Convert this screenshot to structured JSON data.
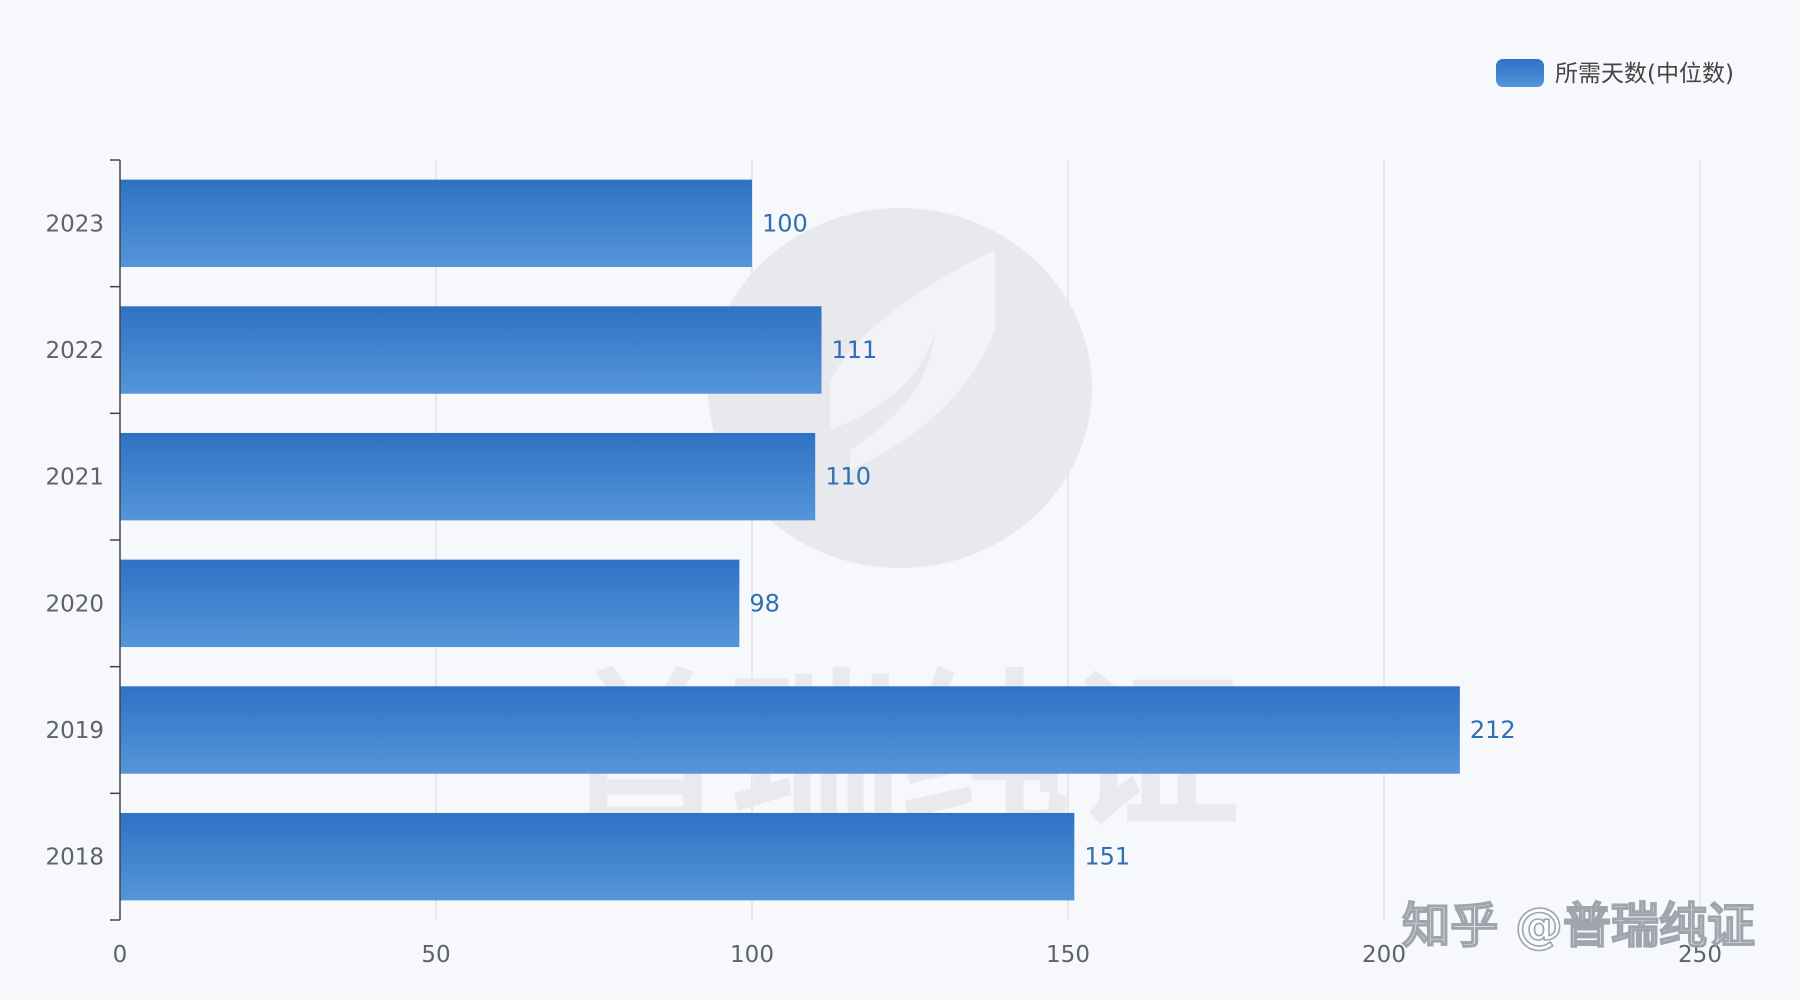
{
  "watermark": {
    "large_text": "普瑞纯证",
    "credit_text": "知乎 @普瑞纯证"
  },
  "colors": {
    "bar_top": "#2f72c4",
    "bar_bottom": "#5595d9",
    "value_label": "#2f6fb4",
    "gridline": "#dde3ee",
    "axis": "#444444",
    "background": "#f6f8fb"
  },
  "chart_data": {
    "type": "bar",
    "orientation": "horizontal",
    "categories": [
      "2023",
      "2022",
      "2021",
      "2020",
      "2019",
      "2018"
    ],
    "series": [
      {
        "name": "所需天数(中位数)",
        "values": [
          100,
          111,
          110,
          98,
          212,
          151
        ]
      }
    ],
    "xlim": [
      0,
      250
    ],
    "xticks": [
      0,
      50,
      100,
      150,
      200,
      250
    ],
    "title": "",
    "xlabel": "",
    "ylabel": "",
    "grid": "vertical",
    "legend": "top-right",
    "data_labels": true
  }
}
